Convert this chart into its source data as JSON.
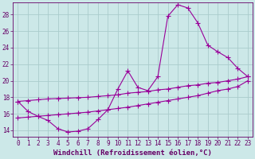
{
  "xlabel": "Windchill (Refroidissement éolien,°C)",
  "bg_color": "#cce8e8",
  "grid_color": "#aacccc",
  "line_color": "#990099",
  "xlim": [
    -0.5,
    23.5
  ],
  "ylim": [
    13.2,
    29.5
  ],
  "xticks": [
    0,
    1,
    2,
    3,
    4,
    5,
    6,
    7,
    8,
    9,
    10,
    11,
    12,
    13,
    14,
    15,
    16,
    17,
    18,
    19,
    20,
    21,
    22,
    23
  ],
  "yticks": [
    14,
    16,
    18,
    20,
    22,
    24,
    26,
    28
  ],
  "line1_x": [
    0,
    1,
    2,
    3,
    4,
    5,
    6,
    7,
    8,
    9,
    10,
    11,
    12,
    13,
    14,
    15,
    16,
    17,
    18,
    19,
    20,
    21,
    22,
    23
  ],
  "line1_y": [
    17.5,
    16.3,
    15.7,
    15.2,
    14.2,
    13.8,
    13.9,
    14.2,
    15.3,
    16.5,
    19.0,
    21.2,
    19.2,
    18.8,
    20.5,
    27.8,
    29.2,
    28.8,
    27.0,
    24.3,
    23.5,
    22.8,
    21.5,
    20.5
  ],
  "line2_x": [
    0,
    1,
    2,
    3,
    4,
    5,
    6,
    7,
    8,
    9,
    10,
    11,
    12,
    13,
    14,
    15,
    16,
    17,
    18,
    19,
    20,
    21,
    22,
    23
  ],
  "line2_y": [
    17.5,
    17.6,
    17.7,
    17.8,
    17.85,
    17.9,
    17.95,
    18.0,
    18.1,
    18.2,
    18.3,
    18.5,
    18.6,
    18.7,
    18.9,
    19.0,
    19.2,
    19.4,
    19.5,
    19.7,
    19.8,
    20.0,
    20.2,
    20.5
  ],
  "line3_x": [
    0,
    1,
    2,
    3,
    4,
    5,
    6,
    7,
    8,
    9,
    10,
    11,
    12,
    13,
    14,
    15,
    16,
    17,
    18,
    19,
    20,
    21,
    22,
    23
  ],
  "line3_y": [
    15.5,
    15.6,
    15.7,
    15.8,
    15.9,
    16.0,
    16.1,
    16.2,
    16.35,
    16.5,
    16.65,
    16.8,
    17.0,
    17.2,
    17.4,
    17.6,
    17.8,
    18.0,
    18.2,
    18.5,
    18.8,
    19.0,
    19.3,
    20.0
  ],
  "font_color": "#660066",
  "xlabel_fontsize": 6.5,
  "tick_fontsize": 5.5
}
